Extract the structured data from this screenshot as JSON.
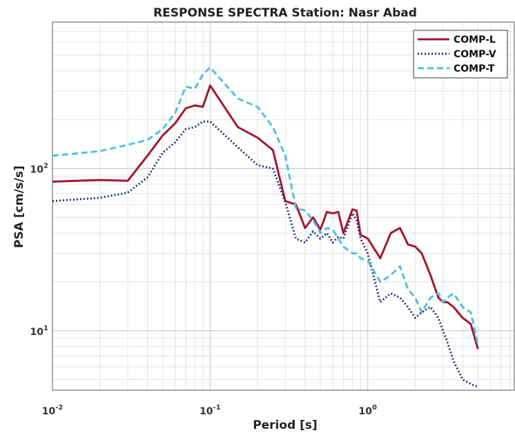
{
  "chart_data": {
    "type": "line",
    "title": "RESPONSE SPECTRA   Station:  Nasr Abad",
    "xlabel": "Period [s]",
    "ylabel": "PSA  [cm/s/s]",
    "x_scale": "log",
    "y_scale": "log",
    "xlim": [
      0.01,
      8.5
    ],
    "ylim": [
      4.3,
      800
    ],
    "x_ticks": [
      {
        "value": 0.01,
        "base": "10",
        "exp": "-2"
      },
      {
        "value": 0.1,
        "base": "10",
        "exp": "-1"
      },
      {
        "value": 1,
        "base": "10",
        "exp": "0"
      }
    ],
    "y_ticks": [
      {
        "value": 10,
        "base": "10",
        "exp": "1"
      },
      {
        "value": 100,
        "base": "10",
        "exp": "2"
      }
    ],
    "grid": true,
    "legend_position": "top-right",
    "series": [
      {
        "name": "COMP-L",
        "color": "#a3162f",
        "style": "solid",
        "x": [
          0.01,
          0.02,
          0.03,
          0.04,
          0.05,
          0.06,
          0.07,
          0.08,
          0.09,
          0.1,
          0.15,
          0.2,
          0.25,
          0.3,
          0.35,
          0.4,
          0.45,
          0.5,
          0.55,
          0.6,
          0.65,
          0.7,
          0.8,
          0.85,
          0.9,
          1.0,
          1.2,
          1.4,
          1.6,
          1.8,
          2.0,
          2.2,
          2.5,
          2.8,
          3.0,
          3.2,
          3.5,
          4.0,
          4.5,
          5.0
        ],
        "y": [
          83,
          85,
          84,
          120,
          160,
          190,
          235,
          245,
          240,
          325,
          180,
          155,
          130,
          63,
          60,
          43,
          50,
          42,
          54,
          53,
          54,
          40,
          56,
          55,
          39,
          37,
          28,
          40,
          43,
          34,
          33,
          30,
          22,
          16,
          15,
          15,
          14,
          12,
          11,
          7.7
        ]
      },
      {
        "name": "COMP-V",
        "color": "#1f2f80",
        "style": "dotted",
        "x": [
          0.01,
          0.02,
          0.03,
          0.04,
          0.05,
          0.06,
          0.07,
          0.08,
          0.09,
          0.1,
          0.15,
          0.2,
          0.25,
          0.3,
          0.35,
          0.4,
          0.45,
          0.5,
          0.55,
          0.6,
          0.65,
          0.7,
          0.8,
          0.85,
          0.9,
          1.0,
          1.2,
          1.4,
          1.6,
          1.8,
          2.0,
          2.2,
          2.5,
          2.8,
          3.0,
          3.2,
          3.5,
          4.0,
          4.5,
          5.0
        ],
        "y": [
          63,
          66,
          71,
          88,
          125,
          145,
          175,
          180,
          195,
          195,
          135,
          105,
          100,
          62,
          37,
          35,
          41,
          37,
          40,
          35,
          38,
          37,
          53,
          48,
          37,
          30,
          15,
          17,
          16,
          14,
          12,
          13,
          14,
          12,
          10,
          8.5,
          6.5,
          5.0,
          4.7,
          4.5
        ]
      },
      {
        "name": "COMP-T",
        "color": "#4fc0e6",
        "style": "dashed",
        "x": [
          0.01,
          0.02,
          0.03,
          0.04,
          0.05,
          0.06,
          0.07,
          0.08,
          0.09,
          0.1,
          0.15,
          0.2,
          0.25,
          0.3,
          0.35,
          0.4,
          0.45,
          0.5,
          0.55,
          0.6,
          0.65,
          0.7,
          0.8,
          0.85,
          0.9,
          1.0,
          1.2,
          1.4,
          1.6,
          1.8,
          2.0,
          2.2,
          2.5,
          2.8,
          3.0,
          3.2,
          3.5,
          4.0,
          4.5,
          5.0
        ],
        "y": [
          120,
          128,
          140,
          150,
          175,
          220,
          320,
          310,
          380,
          420,
          270,
          240,
          180,
          120,
          57,
          55,
          48,
          40,
          43,
          42,
          37,
          33,
          30,
          30,
          28,
          27,
          20,
          22,
          25,
          18,
          16,
          13,
          16,
          17,
          15,
          16,
          17,
          14,
          13,
          8.2
        ]
      }
    ]
  }
}
